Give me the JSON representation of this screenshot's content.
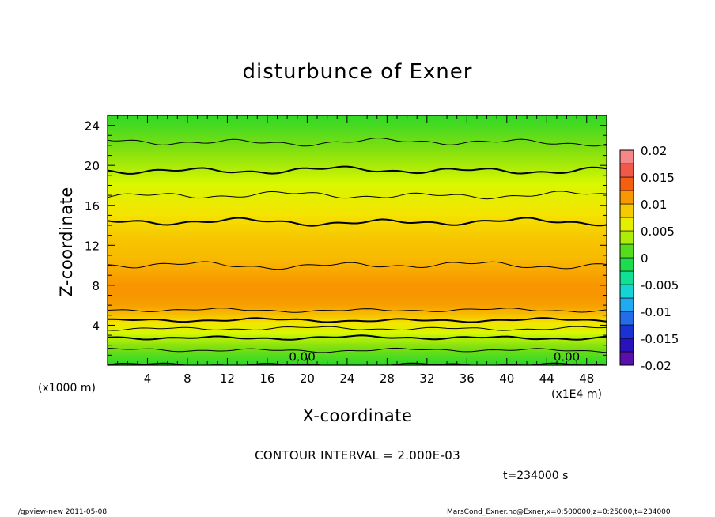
{
  "chart_data": {
    "type": "heatmap",
    "title": "disturbunce of Exner",
    "xlabel": "X-coordinate",
    "ylabel": "Z-coordinate",
    "x_unit_label": "(x1000 m)",
    "x_scale_label": "(x1E4 m)",
    "xlim": [
      0,
      50
    ],
    "ylim": [
      0,
      25
    ],
    "x_ticks": [
      4,
      8,
      12,
      16,
      20,
      24,
      28,
      32,
      36,
      40,
      44,
      48
    ],
    "y_ticks": [
      4,
      8,
      12,
      16,
      20,
      24
    ],
    "colorbar": {
      "ticks": [
        "0.02",
        "0.015",
        "0.01",
        "0.005",
        "0",
        "-0.005",
        "-0.01",
        "-0.015",
        "-0.02"
      ],
      "range": [
        -0.02,
        0.02
      ]
    },
    "contour_interval_text": "CONTOUR INTERVAL = 2.000E-03",
    "contour_labels": [
      "0.00",
      "0.00"
    ],
    "time_text": "t=234000 s",
    "profile": {
      "z": [
        0,
        1,
        2,
        3,
        4,
        5,
        6,
        7,
        8,
        9,
        10,
        11,
        12,
        13,
        14,
        15,
        16,
        17,
        18,
        19,
        20,
        21,
        22,
        23,
        24,
        25
      ],
      "value": [
        0.0,
        0.0012,
        0.0028,
        0.0044,
        0.0068,
        0.0092,
        0.0108,
        0.0114,
        0.0114,
        0.0108,
        0.01,
        0.0094,
        0.0092,
        0.0088,
        0.0082,
        0.0076,
        0.0068,
        0.006,
        0.0052,
        0.0044,
        0.0036,
        0.003,
        0.0022,
        0.0016,
        0.0008,
        0.0003
      ]
    },
    "contour_levels": [
      0.0,
      0.002,
      0.004,
      0.006,
      0.008,
      0.01
    ]
  },
  "footer": {
    "left": "./gpview-new   2011-05-08",
    "right": "MarsCond_Exner.nc@Exner,x=0:500000,z=0:25000,t=234000"
  }
}
